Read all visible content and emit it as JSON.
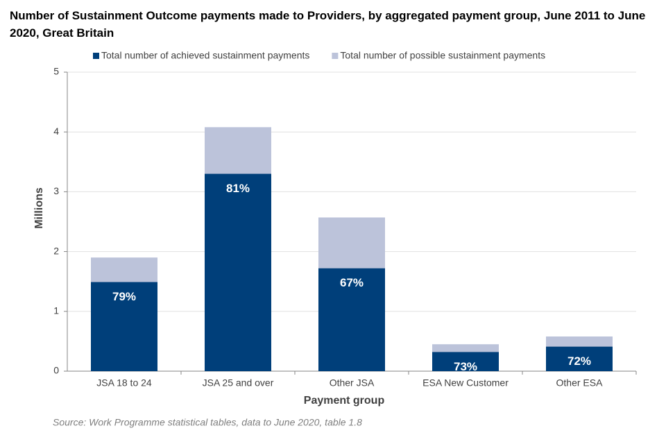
{
  "chart_data": {
    "type": "bar",
    "title": "Number of Sustainment Outcome payments made to Providers, by aggregated payment group, June 2011 to June 2020, Great Britain",
    "x_label": "Payment group",
    "y_label": "Millions",
    "source": "Source: Work Programme statistical tables, data to June 2020, table 1.8",
    "categories": [
      "JSA 18 to 24",
      "JSA 25 and over",
      "Other JSA",
      "ESA New Customer",
      "Other ESA"
    ],
    "series": [
      {
        "name": "Total number of achieved sustainment payments",
        "color": "#003f7a",
        "values": [
          1.49,
          3.3,
          1.72,
          0.32,
          0.41
        ]
      },
      {
        "name": "Total number of possible sustainment payments",
        "color": "#bcc3da",
        "values": [
          1.9,
          4.08,
          2.57,
          0.45,
          0.58
        ]
      }
    ],
    "bar_labels": [
      "79%",
      "81%",
      "67%",
      "73%",
      "72%"
    ],
    "ylim": [
      0,
      5
    ],
    "yticks": [
      0,
      1,
      2,
      3,
      4,
      5
    ],
    "grid": true,
    "legend": "top"
  }
}
